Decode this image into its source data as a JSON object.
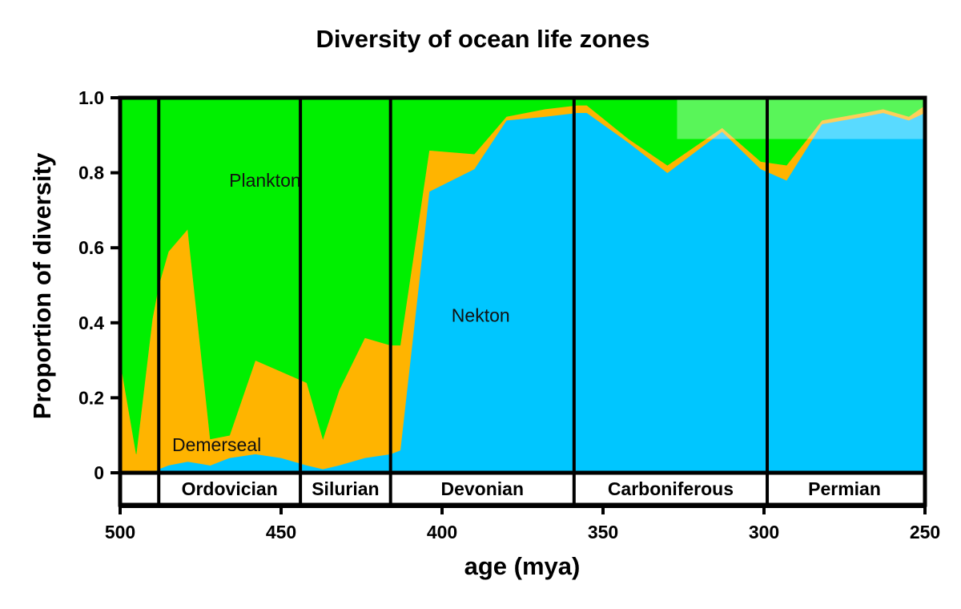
{
  "chart_data": {
    "type": "area",
    "stacked": true,
    "title": "Diversity of ocean life zones",
    "xlabel": "age (mya)",
    "ylabel": "Proportion of diversity",
    "xlim": [
      500,
      250
    ],
    "ylim": [
      0,
      1.0
    ],
    "xticks": [
      500,
      450,
      400,
      350,
      300,
      250
    ],
    "xtick_labels": [
      "500",
      "450",
      "400",
      "350",
      "300",
      "250"
    ],
    "yticks": [
      0,
      0.2,
      0.4,
      0.6,
      0.8,
      1.0
    ],
    "ytick_labels": [
      "0",
      "0.2",
      "0.4",
      "0.6",
      "0.8",
      "1.0"
    ],
    "x": [
      500,
      495,
      490,
      488,
      485,
      479,
      472,
      466,
      458,
      450,
      442,
      437,
      432,
      424,
      416,
      413,
      404,
      390,
      380,
      368,
      358,
      355,
      342,
      330,
      313,
      301,
      293,
      282,
      269,
      263,
      255,
      250
    ],
    "series": [
      {
        "name": "Nekton",
        "color": "#00c6ff",
        "values": [
          0.0,
          0.0,
          0.0,
          0.01,
          0.02,
          0.03,
          0.02,
          0.04,
          0.05,
          0.04,
          0.02,
          0.01,
          0.02,
          0.04,
          0.05,
          0.06,
          0.75,
          0.81,
          0.94,
          0.95,
          0.96,
          0.96,
          0.88,
          0.8,
          0.91,
          0.81,
          0.78,
          0.93,
          0.95,
          0.96,
          0.94,
          0.96
        ]
      },
      {
        "name": "Demerseal",
        "color": "#ffb400",
        "values": [
          0.3,
          0.05,
          0.41,
          0.49,
          0.57,
          0.62,
          0.07,
          0.06,
          0.25,
          0.23,
          0.22,
          0.08,
          0.2,
          0.32,
          0.29,
          0.28,
          0.11,
          0.04,
          0.01,
          0.02,
          0.02,
          0.02,
          0.01,
          0.02,
          0.01,
          0.02,
          0.04,
          0.01,
          0.01,
          0.01,
          0.01,
          0.02
        ]
      },
      {
        "name": "Plankton",
        "color": "#00f000",
        "values": [
          0.7,
          0.95,
          0.59,
          0.5,
          0.41,
          0.35,
          0.91,
          0.9,
          0.7,
          0.73,
          0.76,
          0.91,
          0.78,
          0.64,
          0.66,
          0.66,
          0.14,
          0.15,
          0.05,
          0.03,
          0.02,
          0.02,
          0.11,
          0.18,
          0.08,
          0.17,
          0.18,
          0.06,
          0.04,
          0.03,
          0.05,
          0.02
        ]
      }
    ],
    "zone_labels": [
      {
        "text": "Plankton",
        "x": 455,
        "y": 0.78
      },
      {
        "text": "Nekton",
        "x": 388,
        "y": 0.42
      },
      {
        "text": "Demerseal",
        "x": 470,
        "y": 0.075
      }
    ],
    "periods": [
      {
        "name": "",
        "start": 500,
        "end": 488
      },
      {
        "name": "Ordovician",
        "start": 488,
        "end": 444
      },
      {
        "name": "Silurian",
        "start": 444,
        "end": 416
      },
      {
        "name": "Devonian",
        "start": 416,
        "end": 359
      },
      {
        "name": "Carboniferous",
        "start": 359,
        "end": 299
      },
      {
        "name": "Permian",
        "start": 299,
        "end": 251
      }
    ],
    "highlight": {
      "x_from": 327,
      "x_to": 250,
      "y_from": 0.89,
      "y_to": 1.0,
      "color": "#ffffff",
      "opacity": 0.35
    },
    "grid": false
  }
}
